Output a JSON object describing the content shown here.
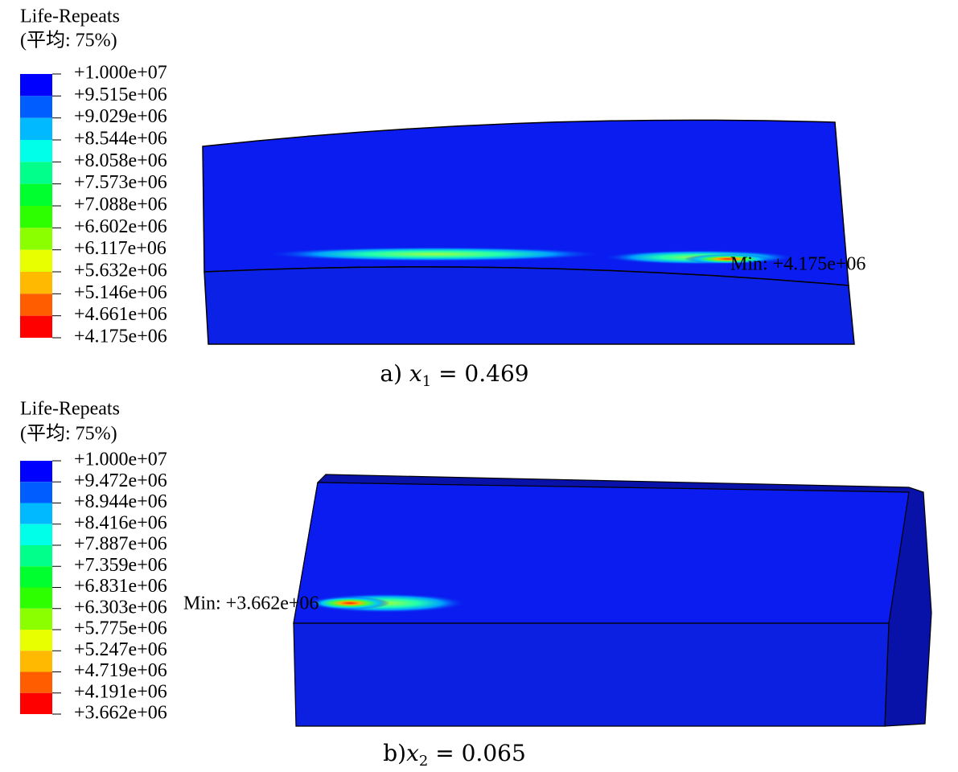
{
  "panels": [
    {
      "legend_title": "Life-Repeats",
      "legend_subtitle": "(平均: 75%)",
      "legend_labels": [
        "+1.000e+07",
        "+9.515e+06",
        "+9.029e+06",
        "+8.544e+06",
        "+8.058e+06",
        "+7.573e+06",
        "+7.088e+06",
        "+6.602e+06",
        "+6.117e+06",
        "+5.632e+06",
        "+5.146e+06",
        "+4.661e+06",
        "+4.175e+06"
      ],
      "legend_colors": [
        "#0000ff",
        "#005dff",
        "#00b9ff",
        "#00ffe8",
        "#00ff8b",
        "#00ff2e",
        "#2eff00",
        "#8bff00",
        "#e8ff00",
        "#ffb900",
        "#ff5d00",
        "#ff0000"
      ],
      "min_label": "Min: +4.175e+06",
      "caption": {
        "prefix": "a) ",
        "var": "x",
        "sub": "1",
        "rest": " = 0.469"
      }
    },
    {
      "legend_title": "Life-Repeats",
      "legend_subtitle": "(平均: 75%)",
      "legend_labels": [
        "+1.000e+07",
        "+9.472e+06",
        "+8.944e+06",
        "+8.416e+06",
        "+7.887e+06",
        "+7.359e+06",
        "+6.831e+06",
        "+6.303e+06",
        "+5.775e+06",
        "+5.247e+06",
        "+4.719e+06",
        "+4.191e+06",
        "+3.662e+06"
      ],
      "legend_colors": [
        "#0000ff",
        "#005dff",
        "#00b9ff",
        "#00ffe8",
        "#00ff8b",
        "#00ff2e",
        "#2eff00",
        "#8bff00",
        "#e8ff00",
        "#ffb900",
        "#ff5d00",
        "#ff0000"
      ],
      "min_label": "Min: +3.662e+06",
      "caption": {
        "prefix": "b)",
        "var": "x",
        "sub": "2",
        "rest": " = 0.065"
      }
    }
  ]
}
